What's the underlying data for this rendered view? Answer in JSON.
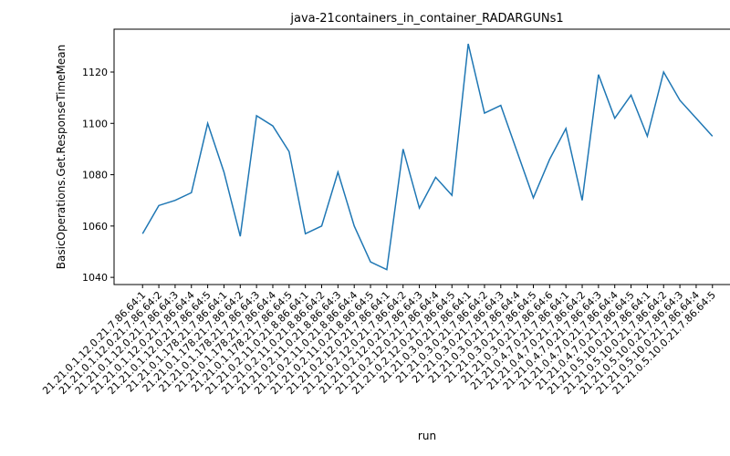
{
  "chart_data": {
    "type": "line",
    "title": "java-21containers_in_container_RADARGUNs1",
    "x_label": "run",
    "y_label": "BasicOperations.Get.ResponseTimeMean",
    "categories": [
      "21.21.0.1.12.0.21.7.86.64:1",
      "21.21.0.1.12.0.21.7.86.64:2",
      "21.21.0.1.12.0.21.7.86.64:3",
      "21.21.0.1.12.0.21.7.86.64:4",
      "21.21.0.1.12.0.21.7.86.64:5",
      "21.21.0.1.178.21.7.86.64:1",
      "21.21.0.1.178.21.7.86.64:2",
      "21.21.0.1.178.21.7.86.64:3",
      "21.21.0.1.178.21.7.86.64:4",
      "21.21.0.1.178.21.7.86.64:5",
      "21.21.0.2.11.0.21.8.86.64:1",
      "21.21.0.2.11.0.21.8.86.64:2",
      "21.21.0.2.11.0.21.8.86.64:3",
      "21.21.0.2.11.0.21.8.86.64:4",
      "21.21.0.2.11.0.21.8.86.64:5",
      "21.21.0.2.12.0.21.7.86.64:1",
      "21.21.0.2.12.0.21.7.86.64:2",
      "21.21.0.2.12.0.21.7.86.64:3",
      "21.21.0.2.12.0.21.7.86.64:4",
      "21.21.0.2.12.0.21.7.86.64:5",
      "21.21.0.3.0.21.7.86.64:1",
      "21.21.0.3.0.21.7.86.64:2",
      "21.21.0.3.0.21.7.86.64:3",
      "21.21.0.3.0.21.7.86.64:4",
      "21.21.0.3.0.21.7.86.64:5",
      "21.21.0.3.0.21.7.86.64:6",
      "21.21.0.4.7.0.21.7.86.64:1",
      "21.21.0.4.7.0.21.7.86.64:2",
      "21.21.0.4.7.0.21.7.86.64:3",
      "21.21.0.4.7.0.21.7.86.64:4",
      "21.21.0.4.7.0.21.7.86.64:5",
      "21.21.0.5.10.0.21.7.86.64:1",
      "21.21.0.5.10.0.21.7.86.64:2",
      "21.21.0.5.10.0.21.7.86.64:3",
      "21.21.0.5.10.0.21.7.86.64:4",
      "21.21.0.5.10.0.21.7.86.64:5"
    ],
    "values": [
      1057,
      1068,
      1070,
      1073,
      1100,
      1081,
      1056,
      1103,
      1099,
      1089,
      1057,
      1060,
      1081,
      1060,
      1046,
      1043,
      1090,
      1067,
      1079,
      1072,
      1131,
      1104,
      1107,
      1089,
      1071,
      1086,
      1098,
      1070,
      1119,
      1102,
      1111,
      1095,
      1120,
      1109,
      1102,
      1095
    ],
    "color": "#1f77b4",
    "ylim": [
      1037.2,
      1136.7
    ],
    "yticks": [
      1040,
      1060,
      1080,
      1100,
      1120
    ],
    "grid": false
  }
}
